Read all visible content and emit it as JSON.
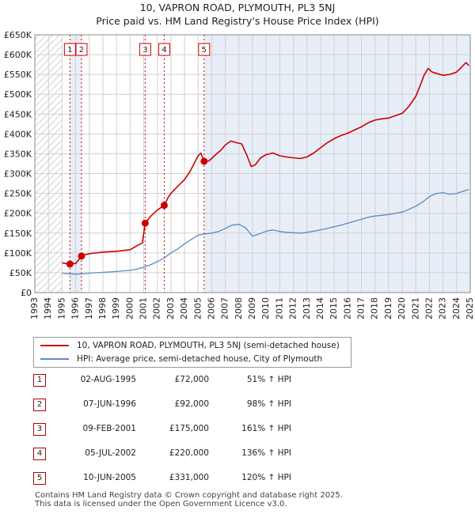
{
  "title_line1": "10, VAPRON ROAD, PLYMOUTH, PL3 5NJ",
  "title_line2": "Price paid vs. HM Land Registry's House Price Index (HPI)",
  "chart_data": {
    "type": "line",
    "title": "Price paid vs. HM Land Registry's House Price Index (HPI)",
    "xlim": [
      1993,
      2025
    ],
    "ylim": [
      0,
      650000
    ],
    "x_ticks": [
      1993,
      1994,
      1995,
      1996,
      1997,
      1998,
      1999,
      2000,
      2001,
      2002,
      2003,
      2004,
      2005,
      2006,
      2007,
      2008,
      2009,
      2010,
      2011,
      2012,
      2013,
      2014,
      2015,
      2016,
      2017,
      2018,
      2019,
      2020,
      2021,
      2022,
      2023,
      2024,
      2025
    ],
    "y_ticks": [
      0,
      50000,
      100000,
      150000,
      200000,
      250000,
      300000,
      350000,
      400000,
      450000,
      500000,
      550000,
      600000,
      650000
    ],
    "y_tick_labels": [
      "£0",
      "£50K",
      "£100K",
      "£150K",
      "£200K",
      "£250K",
      "£300K",
      "£350K",
      "£400K",
      "£450K",
      "£500K",
      "£550K",
      "£600K",
      "£650K"
    ],
    "hatched_before": 1995.0,
    "series": [
      {
        "name": "10, VAPRON ROAD, PLYMOUTH, PL3 5NJ (semi-detached house)",
        "color": "#cc0000",
        "points": [
          [
            1995.0,
            75000
          ],
          [
            1995.5,
            72000
          ],
          [
            1995.75,
            74000
          ],
          [
            1996.0,
            73000
          ],
          [
            1996.43,
            92000
          ],
          [
            1996.6,
            95000
          ],
          [
            1997.0,
            98000
          ],
          [
            1998.0,
            102000
          ],
          [
            1999.0,
            104000
          ],
          [
            2000.0,
            108000
          ],
          [
            2000.5,
            118000
          ],
          [
            2000.9,
            125000
          ],
          [
            2001.11,
            175000
          ],
          [
            2001.5,
            192000
          ],
          [
            2002.0,
            208000
          ],
          [
            2002.51,
            220000
          ],
          [
            2002.8,
            240000
          ],
          [
            2003.0,
            250000
          ],
          [
            2003.5,
            268000
          ],
          [
            2004.0,
            285000
          ],
          [
            2004.4,
            305000
          ],
          [
            2004.7,
            325000
          ],
          [
            2005.0,
            345000
          ],
          [
            2005.2,
            352000
          ],
          [
            2005.44,
            331000
          ],
          [
            2005.8,
            332000
          ],
          [
            2006.2,
            345000
          ],
          [
            2006.7,
            360000
          ],
          [
            2007.0,
            372000
          ],
          [
            2007.4,
            382000
          ],
          [
            2007.8,
            378000
          ],
          [
            2008.2,
            375000
          ],
          [
            2008.6,
            345000
          ],
          [
            2008.9,
            318000
          ],
          [
            2009.2,
            322000
          ],
          [
            2009.6,
            340000
          ],
          [
            2010.0,
            348000
          ],
          [
            2010.5,
            352000
          ],
          [
            2011.0,
            345000
          ],
          [
            2011.5,
            342000
          ],
          [
            2012.0,
            340000
          ],
          [
            2012.5,
            338000
          ],
          [
            2013.0,
            342000
          ],
          [
            2013.5,
            352000
          ],
          [
            2014.0,
            365000
          ],
          [
            2014.5,
            378000
          ],
          [
            2015.0,
            388000
          ],
          [
            2015.5,
            396000
          ],
          [
            2016.0,
            402000
          ],
          [
            2016.5,
            410000
          ],
          [
            2017.0,
            418000
          ],
          [
            2017.5,
            428000
          ],
          [
            2018.0,
            435000
          ],
          [
            2018.5,
            438000
          ],
          [
            2019.0,
            440000
          ],
          [
            2019.5,
            446000
          ],
          [
            2020.0,
            452000
          ],
          [
            2020.5,
            470000
          ],
          [
            2021.0,
            495000
          ],
          [
            2021.3,
            520000
          ],
          [
            2021.6,
            548000
          ],
          [
            2021.9,
            565000
          ],
          [
            2022.2,
            556000
          ],
          [
            2022.6,
            552000
          ],
          [
            2023.0,
            548000
          ],
          [
            2023.5,
            550000
          ],
          [
            2024.0,
            556000
          ],
          [
            2024.4,
            570000
          ],
          [
            2024.7,
            580000
          ],
          [
            2024.9,
            572000
          ]
        ]
      },
      {
        "name": "HPI: Average price, semi-detached house, City of Plymouth",
        "color": "#5b8ac4",
        "points": [
          [
            1995.0,
            49000
          ],
          [
            1995.5,
            47000
          ],
          [
            1996.0,
            46500
          ],
          [
            1996.5,
            47000
          ],
          [
            1997.0,
            49000
          ],
          [
            1998.0,
            51000
          ],
          [
            1999.0,
            53000
          ],
          [
            2000.0,
            56000
          ],
          [
            2000.5,
            59000
          ],
          [
            2001.0,
            64000
          ],
          [
            2001.5,
            70000
          ],
          [
            2002.0,
            78000
          ],
          [
            2002.5,
            87000
          ],
          [
            2003.0,
            100000
          ],
          [
            2003.5,
            110000
          ],
          [
            2004.0,
            123000
          ],
          [
            2004.5,
            134000
          ],
          [
            2005.0,
            145000
          ],
          [
            2005.5,
            148000
          ],
          [
            2006.0,
            150000
          ],
          [
            2006.5,
            154000
          ],
          [
            2007.0,
            162000
          ],
          [
            2007.5,
            170000
          ],
          [
            2008.0,
            172000
          ],
          [
            2008.5,
            163000
          ],
          [
            2009.0,
            142000
          ],
          [
            2009.5,
            148000
          ],
          [
            2010.0,
            155000
          ],
          [
            2010.5,
            158000
          ],
          [
            2011.0,
            154000
          ],
          [
            2011.5,
            152000
          ],
          [
            2012.0,
            151000
          ],
          [
            2012.5,
            150000
          ],
          [
            2013.0,
            152000
          ],
          [
            2013.5,
            155000
          ],
          [
            2014.0,
            158000
          ],
          [
            2014.5,
            162000
          ],
          [
            2015.0,
            166000
          ],
          [
            2015.5,
            170000
          ],
          [
            2016.0,
            175000
          ],
          [
            2016.5,
            180000
          ],
          [
            2017.0,
            185000
          ],
          [
            2017.5,
            190000
          ],
          [
            2018.0,
            193000
          ],
          [
            2018.5,
            195000
          ],
          [
            2019.0,
            197000
          ],
          [
            2019.5,
            200000
          ],
          [
            2020.0,
            203000
          ],
          [
            2020.5,
            210000
          ],
          [
            2021.0,
            218000
          ],
          [
            2021.5,
            228000
          ],
          [
            2022.0,
            242000
          ],
          [
            2022.5,
            250000
          ],
          [
            2023.0,
            252000
          ],
          [
            2023.5,
            248000
          ],
          [
            2024.0,
            250000
          ],
          [
            2024.5,
            256000
          ],
          [
            2024.9,
            260000
          ]
        ]
      }
    ],
    "sales": [
      {
        "label": "1",
        "x": 1995.58,
        "price": 72000
      },
      {
        "label": "2",
        "x": 1996.43,
        "price": 92000
      },
      {
        "label": "3",
        "x": 2001.11,
        "price": 175000
      },
      {
        "label": "4",
        "x": 2002.51,
        "price": 220000
      },
      {
        "label": "5",
        "x": 2005.44,
        "price": 331000
      }
    ]
  },
  "legend": {
    "property": "10, VAPRON ROAD, PLYMOUTH, PL3 5NJ (semi-detached house)",
    "hpi": "HPI: Average price, semi-detached house, City of Plymouth"
  },
  "sales_table": [
    {
      "num": "1",
      "date": "02-AUG-1995",
      "price": "£72,000",
      "hpi": "51% ↑ HPI"
    },
    {
      "num": "2",
      "date": "07-JUN-1996",
      "price": "£92,000",
      "hpi": "98% ↑ HPI"
    },
    {
      "num": "3",
      "date": "09-FEB-2001",
      "price": "£175,000",
      "hpi": "161% ↑ HPI"
    },
    {
      "num": "4",
      "date": "05-JUL-2002",
      "price": "£220,000",
      "hpi": "136% ↑ HPI"
    },
    {
      "num": "5",
      "date": "10-JUN-2005",
      "price": "£331,000",
      "hpi": "120% ↑ HPI"
    }
  ],
  "footer": {
    "line1": "Contains HM Land Registry data © Crown copyright and database right 2025.",
    "line2": "This data is licensed under the Open Government Licence v3.0."
  },
  "colors": {
    "property_line": "#cc0000",
    "hpi_line": "#5b8ac4",
    "shade": "#e8eef8",
    "grid": "#d0d0d0"
  }
}
